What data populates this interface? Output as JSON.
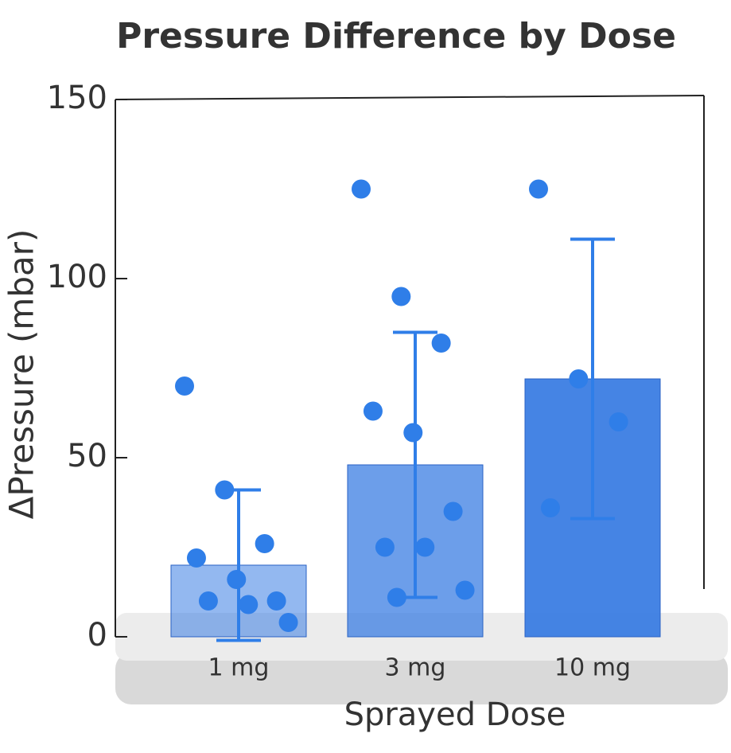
{
  "chart_data": {
    "type": "bar",
    "title": "Pressure Difference by Dose",
    "x_label": "Sprayed Dose",
    "y_label": "ΔPressure (mbar)",
    "categories": [
      "1 mg",
      "3 mg",
      "10 mg"
    ],
    "values": [
      20,
      48,
      72
    ],
    "errors": [
      21,
      37,
      39
    ],
    "points": [
      [
        70,
        41,
        26,
        22,
        16,
        10,
        10,
        9,
        4
      ],
      [
        125,
        95,
        82,
        63,
        57,
        35,
        25,
        25,
        13,
        11
      ],
      [
        125,
        72,
        60,
        36
      ]
    ],
    "color": "#3b7de3",
    "point_color": "#2f7ee8",
    "ylim": [
      0,
      150
    ],
    "yticks": [
      0,
      50,
      100,
      150
    ]
  }
}
